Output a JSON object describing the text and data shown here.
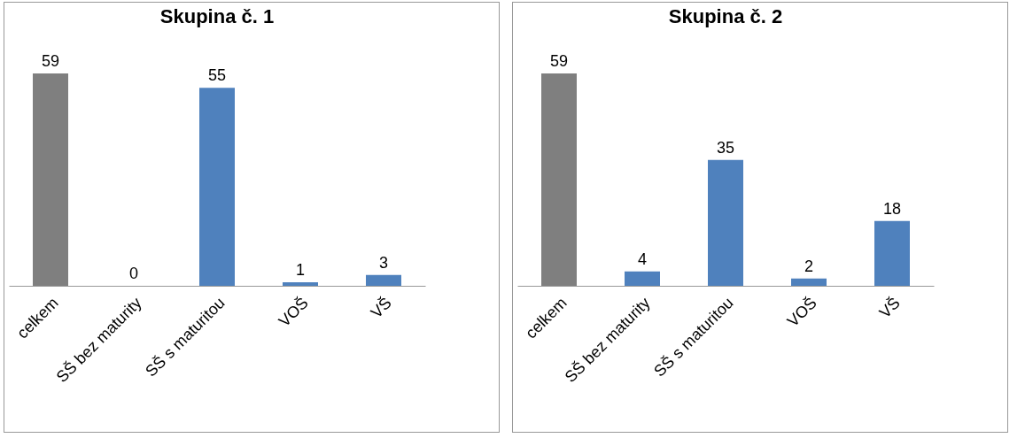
{
  "chart_data": [
    {
      "type": "bar",
      "title": "Skupina č. 1",
      "categories": [
        "celkem",
        "SŠ bez maturity",
        "SŠ s maturitou",
        "VOŠ",
        "VŠ"
      ],
      "values": [
        59,
        0,
        55,
        1,
        3
      ],
      "colors": [
        "#7f7f7f",
        "#4f81bd",
        "#4f81bd",
        "#4f81bd",
        "#4f81bd"
      ],
      "data_labels": true,
      "tick_labels": "x"
    },
    {
      "type": "bar",
      "title": "Skupina č. 2",
      "categories": [
        "celkem",
        "SŠ bez maturity",
        "SŠ s maturitou",
        "VOŠ",
        "VŠ"
      ],
      "values": [
        59,
        4,
        35,
        2,
        18
      ],
      "colors": [
        "#7f7f7f",
        "#4f81bd",
        "#4f81bd",
        "#4f81bd",
        "#4f81bd"
      ],
      "data_labels": true,
      "tick_labels": "x"
    }
  ]
}
